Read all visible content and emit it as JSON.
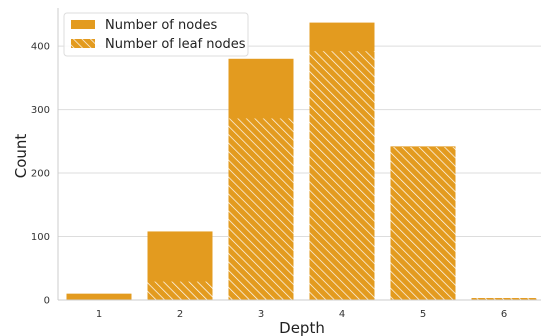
{
  "chart_data": {
    "type": "bar",
    "xlabel": "Depth",
    "ylabel": "Count",
    "categories": [
      "1",
      "2",
      "3",
      "4",
      "5",
      "6"
    ],
    "series": [
      {
        "name": "Number of nodes",
        "values": [
          10,
          108,
          380,
          437,
          242,
          3
        ],
        "color": "#e39b1f",
        "hatch": false
      },
      {
        "name": "Number of leaf nodes",
        "values": [
          0,
          29,
          286,
          392,
          241,
          3
        ],
        "color": "#e39b1f",
        "hatch": true
      }
    ],
    "ylim": [
      0,
      460
    ],
    "yticks": [
      0,
      100,
      200,
      300,
      400
    ],
    "grid": true,
    "legend_position": "top-left"
  }
}
